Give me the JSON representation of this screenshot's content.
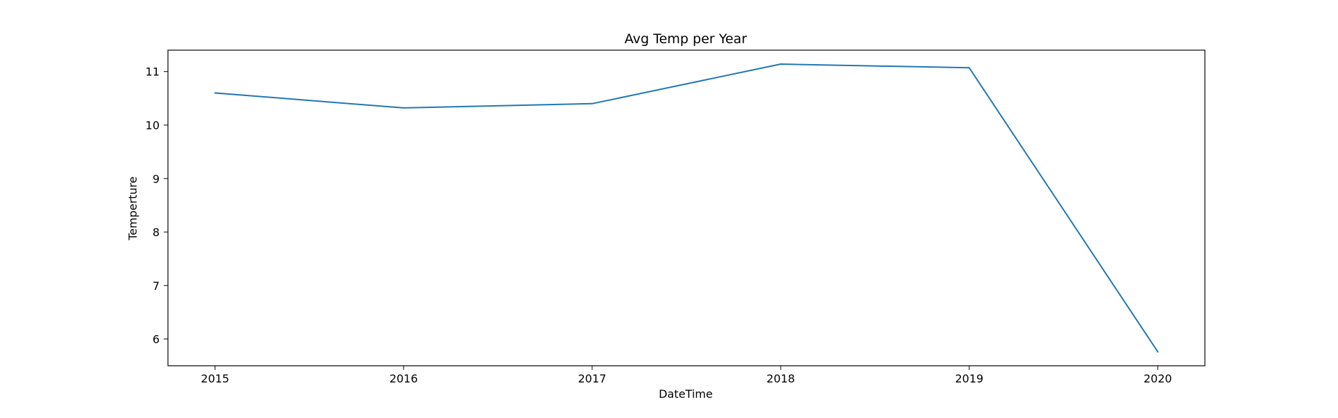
{
  "chart_data": {
    "type": "line",
    "title": "Avg Temp per Year",
    "xlabel": "DateTime",
    "ylabel": "Temperture",
    "x": [
      2015,
      2016,
      2017,
      2018,
      2019,
      2020
    ],
    "x_tick_labels": [
      "2015",
      "2016",
      "2017",
      "2018",
      "2019",
      "2020"
    ],
    "y_ticks": [
      6,
      7,
      8,
      9,
      10,
      11
    ],
    "y_tick_labels": [
      "6",
      "7",
      "8",
      "9",
      "10",
      "11"
    ],
    "xlim": [
      2014.75,
      2020.25
    ],
    "ylim": [
      5.5,
      11.4
    ],
    "grid": false,
    "series": [
      {
        "values": [
          10.6,
          10.32,
          10.4,
          11.14,
          11.07,
          5.76
        ],
        "color": "#1f77b4"
      }
    ]
  }
}
